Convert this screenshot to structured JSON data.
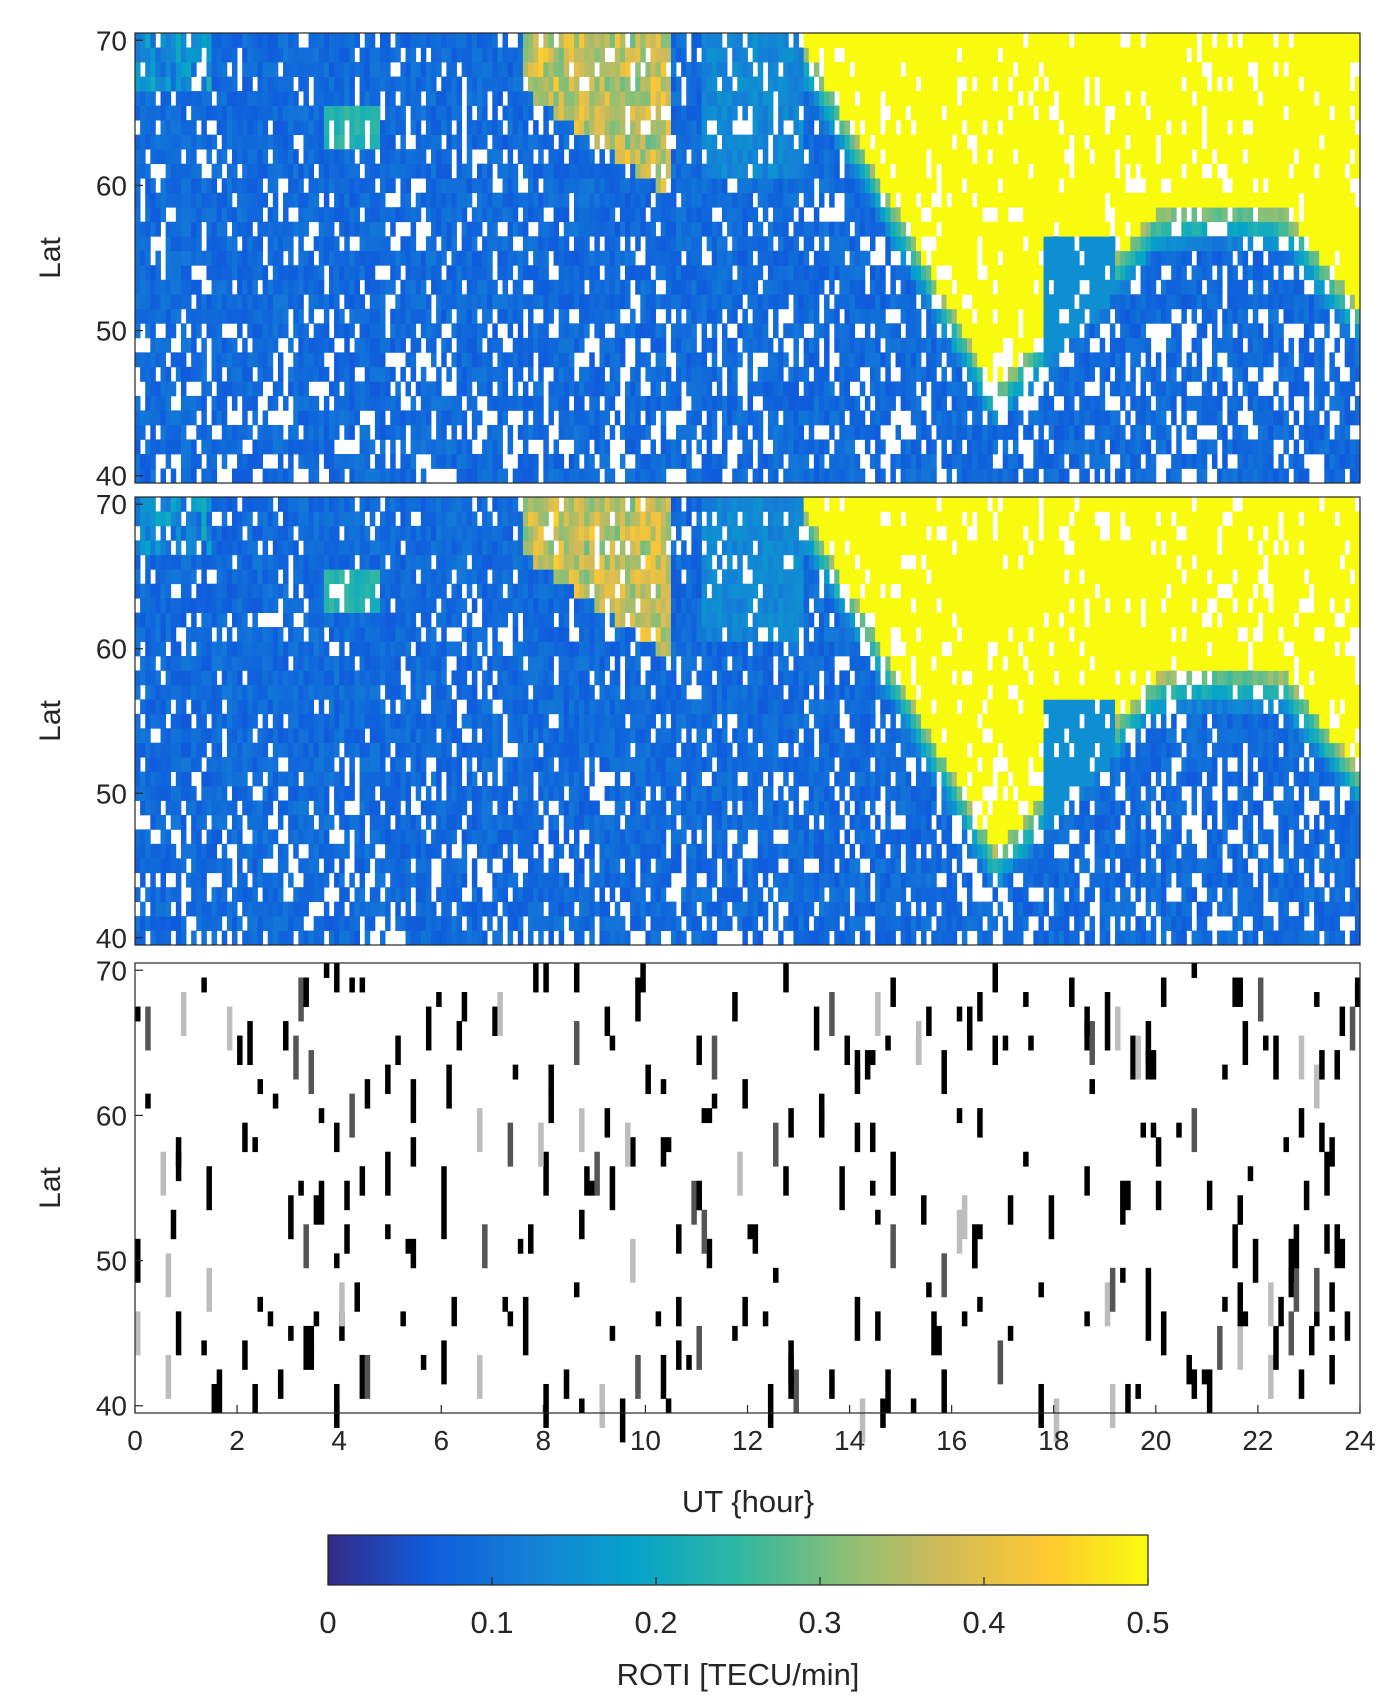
{
  "chart_data": {
    "type": "heatmap",
    "panels": [
      {
        "id": "top",
        "colormap": "parula",
        "ylabel": "Lat",
        "xlim": [
          0,
          24
        ],
        "ylim": [
          39.5,
          70.5
        ],
        "yticks": [
          40,
          50,
          60,
          70
        ],
        "x_tick_labels_shown": false
      },
      {
        "id": "middle",
        "colormap": "parula",
        "ylabel": "Lat",
        "xlim": [
          0,
          24
        ],
        "ylim": [
          39.5,
          70.5
        ],
        "yticks": [
          40,
          50,
          60,
          70
        ],
        "x_tick_labels_shown": false
      },
      {
        "id": "bottom",
        "colormap": "gray",
        "ylabel": "Lat",
        "xlim": [
          0,
          24
        ],
        "ylim": [
          39.5,
          70.5
        ],
        "yticks": [
          40,
          50,
          60,
          70
        ],
        "xticks": [
          0,
          2,
          4,
          6,
          8,
          10,
          12,
          14,
          16,
          18,
          20,
          22,
          24
        ],
        "xlabel": "UT {hour}"
      }
    ],
    "grid": false,
    "approx_structure": {
      "yellow_region_onset_ut_at_70": 13.0,
      "yellow_region_lat_70_to_55_between_ut": [
        13.5,
        23.5
      ],
      "equatorward_extension_minimum_lat": 46,
      "equatorward_extension_ut": 16.8,
      "morning_orange_patch_ut": [
        8.5,
        9.8
      ],
      "morning_orange_patch_lat": [
        64,
        70
      ]
    },
    "colorbar": {
      "label": "ROTI [TECU/min]",
      "range": [
        0,
        0.5
      ],
      "ticks": [
        0,
        0.1,
        0.2,
        0.3,
        0.4,
        0.5
      ],
      "colormap": "parula",
      "colors": [
        "#352a87",
        "#0f5cdd",
        "#1481d6",
        "#06a4ca",
        "#2eb7a4",
        "#87bf77",
        "#d1bb59",
        "#fec832",
        "#f9fb0e"
      ]
    }
  }
}
